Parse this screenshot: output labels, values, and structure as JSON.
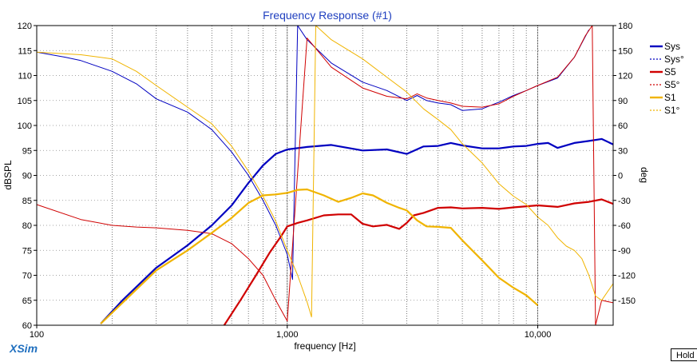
{
  "app": {
    "brand": "XSim",
    "hold_label": "Hold"
  },
  "chart_data": {
    "type": "line",
    "title": "Frequency Response (#1)",
    "xlabel": "frequency [Hz]",
    "ylabel": "dBSPL",
    "y2label": "deg",
    "xscale": "log",
    "xlim": [
      100,
      20000
    ],
    "ylim": [
      60,
      120
    ],
    "y2lim": [
      -180,
      180
    ],
    "grid": true,
    "legend_position": "right",
    "x_tick_labels": [
      {
        "value": 100,
        "label": "100"
      },
      {
        "value": 1000,
        "label": "1,000"
      },
      {
        "value": 10000,
        "label": "10,000"
      }
    ],
    "y_ticks": [
      60,
      65,
      70,
      75,
      80,
      85,
      90,
      95,
      100,
      105,
      110,
      115,
      120
    ],
    "y2_ticks": [
      -150,
      -120,
      -90,
      -60,
      -30,
      0,
      30,
      60,
      90,
      120,
      150,
      180
    ],
    "series": [
      {
        "name": "Sys",
        "axis": "left",
        "color": "#0000c0",
        "style": "solid",
        "width": 2.2,
        "x": [
          180,
          220,
          300,
          400,
          500,
          600,
          700,
          800,
          900,
          1000,
          1200,
          1500,
          2000,
          2500,
          3000,
          3500,
          4000,
          4500,
          5000,
          6000,
          7000,
          8000,
          9000,
          10000,
          11000,
          12000,
          14000,
          16000,
          18000,
          20000
        ],
        "y": [
          60.3,
          65,
          71.5,
          76,
          80,
          84,
          88.5,
          92,
          94.3,
          95.2,
          95.7,
          96.1,
          95.0,
          95.2,
          94.3,
          95.8,
          95.9,
          96.5,
          96.0,
          95.4,
          95.4,
          95.8,
          95.9,
          96.3,
          96.5,
          95.5,
          96.5,
          96.9,
          97.3,
          96.2
        ]
      },
      {
        "name": "Sys°",
        "axis": "right",
        "color": "#0000c0",
        "style": "dashed",
        "width": 1,
        "x": [
          100,
          130,
          150,
          200,
          250,
          300,
          400,
          500,
          600,
          700,
          800,
          900,
          1000,
          1050,
          1100,
          1200,
          1500,
          2000,
          2500,
          3000,
          3300,
          3600,
          4000,
          4500,
          5000,
          6000,
          7000,
          8000,
          9000,
          10000,
          12000,
          14000,
          16000
        ],
        "y": [
          148,
          142,
          138,
          125,
          110,
          92,
          76,
          55,
          28,
          0,
          -30,
          -60,
          -95,
          -125,
          180,
          163,
          135,
          112,
          102,
          90,
          96,
          90,
          87,
          85,
          78,
          80,
          88,
          96,
          102,
          108,
          117,
          142,
          175
        ]
      },
      {
        "name": "S5",
        "axis": "left",
        "color": "#d00000",
        "style": "solid",
        "width": 2.2,
        "x": [
          560,
          650,
          750,
          850,
          950,
          1000,
          1100,
          1200,
          1400,
          1600,
          1800,
          2000,
          2200,
          2500,
          2800,
          3000,
          3200,
          3500,
          4000,
          4500,
          5000,
          6000,
          7000,
          8000,
          10000,
          12000,
          14000,
          16000,
          18000,
          20000
        ],
        "y": [
          60,
          65,
          70,
          74.5,
          78,
          79.8,
          80.5,
          81.0,
          82.0,
          82.2,
          82.2,
          80.3,
          79.8,
          80.1,
          79.3,
          80.5,
          82.0,
          82.5,
          83.5,
          83.6,
          83.4,
          83.5,
          83.3,
          83.6,
          84.0,
          83.7,
          84.4,
          84.7,
          85.2,
          84.3
        ]
      },
      {
        "name": "S5°",
        "axis": "right",
        "color": "#d00000",
        "style": "dashed",
        "width": 1,
        "x": [
          100,
          150,
          200,
          250,
          300,
          400,
          500,
          600,
          700,
          800,
          900,
          1000,
          1200,
          1500,
          2000,
          2500,
          3000,
          3300,
          3600,
          4000,
          4500,
          5000,
          6000,
          7000,
          8000,
          9000,
          10000,
          12000,
          14000,
          15500,
          16500,
          17000,
          18000,
          20000
        ],
        "y": [
          -35,
          -53,
          -60,
          -62,
          -63,
          -66,
          -70,
          -82,
          -100,
          -120,
          -150,
          -175,
          165,
          130,
          105,
          95,
          92,
          98,
          93,
          90,
          87,
          83,
          82,
          86,
          95,
          102,
          108,
          118,
          142,
          168,
          180,
          -180,
          -150,
          -153
        ]
      },
      {
        "name": "S1",
        "axis": "left",
        "color": "#f0b400",
        "style": "solid",
        "width": 2.2,
        "x": [
          180,
          220,
          300,
          400,
          500,
          600,
          700,
          800,
          900,
          1000,
          1100,
          1200,
          1400,
          1600,
          1800,
          2000,
          2200,
          2500,
          2800,
          3000,
          3300,
          3600,
          4000,
          4500,
          5000,
          6000,
          7000,
          8000,
          9000,
          10000
        ],
        "y": [
          60.3,
          64.5,
          71,
          75,
          78.5,
          81.5,
          84.5,
          86.0,
          86.2,
          86.5,
          87.1,
          87.2,
          86.0,
          84.7,
          85.5,
          86.4,
          86.0,
          84.5,
          83.5,
          83.0,
          81.0,
          79.8,
          79.7,
          79.5,
          77.0,
          73.0,
          69.5,
          67.5,
          66.0,
          64.0
        ]
      },
      {
        "name": "S1°",
        "axis": "right",
        "color": "#f0b400",
        "style": "dashed",
        "width": 1,
        "x": [
          100,
          150,
          200,
          250,
          300,
          400,
          500,
          600,
          700,
          800,
          900,
          1000,
          1100,
          1200,
          1250,
          1300,
          1500,
          2000,
          2500,
          3000,
          3500,
          4000,
          4500,
          5000,
          6000,
          7000,
          8000,
          9000,
          10000,
          11000,
          12000,
          13000,
          14000,
          15000,
          16000,
          17000,
          18000,
          20000
        ],
        "y": [
          148,
          145,
          140,
          125,
          108,
          82,
          62,
          35,
          5,
          -25,
          -55,
          -90,
          -120,
          -152,
          -170,
          180,
          163,
          140,
          118,
          100,
          80,
          67,
          55,
          38,
          15,
          -10,
          -25,
          -35,
          -50,
          -60,
          -75,
          -85,
          -90,
          -100,
          -120,
          -145,
          -150,
          -130
        ]
      }
    ]
  }
}
